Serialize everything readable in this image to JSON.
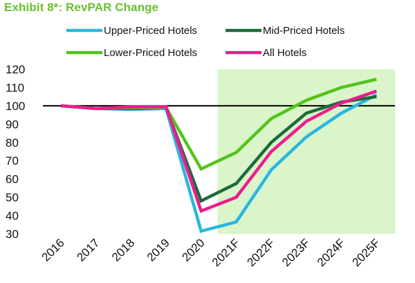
{
  "title": "Exhibit 8*:  RevPAR Change",
  "chart_data": {
    "type": "line",
    "title": "Exhibit 8*:  RevPAR Change",
    "categories": [
      "2016",
      "2017",
      "2018",
      "2019",
      "2020",
      "2021F",
      "2022F",
      "2023F",
      "2024F",
      "2025F"
    ],
    "ylim": [
      30,
      120
    ],
    "yticks": [
      120,
      110,
      100,
      90,
      80,
      70,
      60,
      50,
      40,
      30
    ],
    "reference_line": 100,
    "forecast_shading": {
      "from": "2021F",
      "to": "2025F",
      "color": "#d9f5c9"
    },
    "grid": false,
    "legend_position": "top",
    "series": [
      {
        "name": "Upper-Priced Hotels",
        "color": "#29b6e0",
        "values": [
          100,
          98.5,
          98,
          98.5,
          31.5,
          36.5,
          65,
          83,
          96,
          106
        ]
      },
      {
        "name": "Mid-Priced Hotels",
        "color": "#1a6b3c",
        "values": [
          100,
          98.5,
          98.5,
          99,
          48,
          57.5,
          80,
          96,
          102,
          105
        ]
      },
      {
        "name": "Lower-Priced Hotels",
        "color": "#52c41a",
        "values": [
          100,
          98.5,
          99,
          99,
          65.5,
          74.5,
          93,
          103,
          110,
          114.5
        ]
      },
      {
        "name": "All Hotels",
        "color": "#ee1c8f",
        "values": [
          100,
          98.5,
          99.5,
          99.5,
          42.5,
          50,
          75,
          91.5,
          101.5,
          108
        ]
      }
    ]
  }
}
